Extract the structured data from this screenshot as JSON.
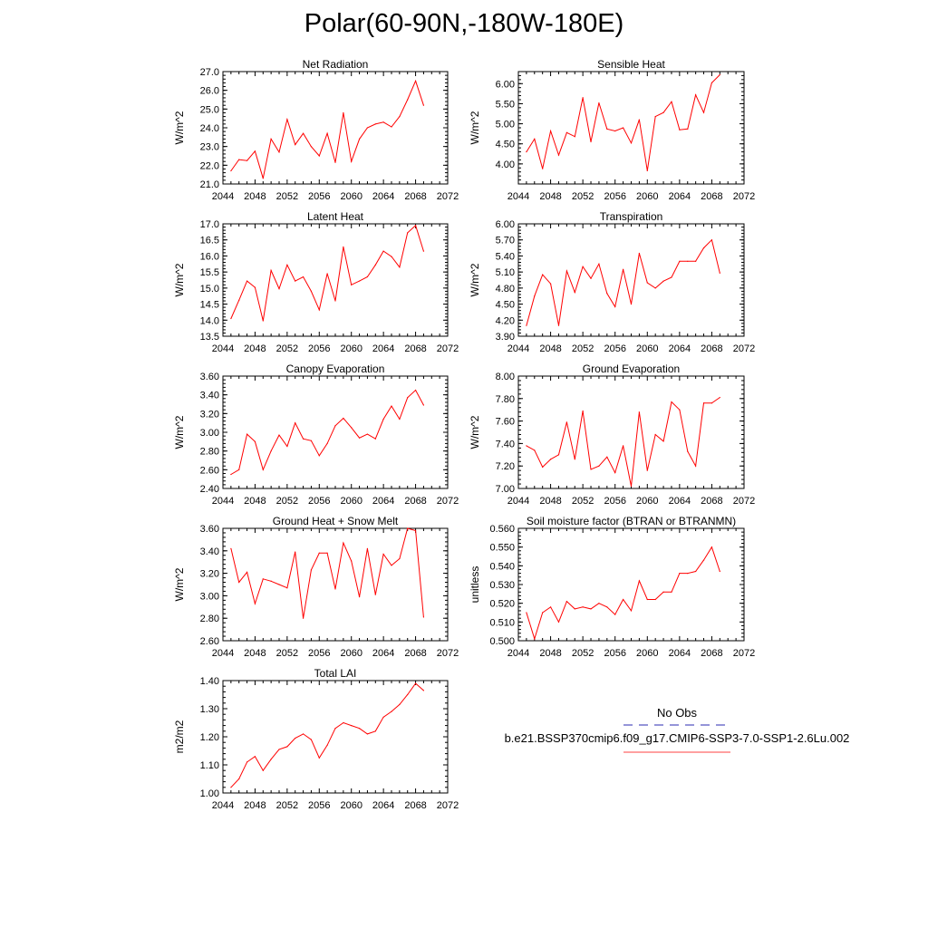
{
  "page": {
    "title": "Polar(60-90N,-180W-180E)"
  },
  "legend": {
    "entries": [
      {
        "label": "No Obs",
        "style": "dashed",
        "color": "#2b2bb0"
      },
      {
        "label": "b.e21.BSSP370cmip6.f09_g17.CMIP6-SSP3-7.0-SSP1-2.6Lu.002",
        "style": "solid",
        "color": "#ff4040"
      }
    ]
  },
  "colors": {
    "series": "#ff0000",
    "axis": "#000000"
  },
  "chart_data": [
    {
      "type": "line",
      "title": "Net Radiation",
      "xlabel": "",
      "ylabel": "W/m^2",
      "xlim": [
        2044,
        2072
      ],
      "ylim": [
        21.0,
        27.0
      ],
      "xticks": [
        "2044",
        "2048",
        "2052",
        "2056",
        "2060",
        "2064",
        "2068",
        "2072"
      ],
      "yticks": [
        "21.0",
        "22.0",
        "23.0",
        "24.0",
        "25.0",
        "26.0",
        "27.0"
      ],
      "x": [
        2045,
        2046,
        2047,
        2048,
        2049,
        2050,
        2051,
        2052,
        2053,
        2054,
        2055,
        2056,
        2057,
        2058,
        2059,
        2060,
        2061,
        2062,
        2063,
        2064,
        2065,
        2066,
        2067,
        2068,
        2069
      ],
      "series": [
        {
          "values": [
            21.7,
            22.3,
            22.25,
            22.75,
            21.3,
            23.4,
            22.7,
            24.45,
            23.1,
            23.7,
            23.0,
            22.5,
            23.7,
            22.15,
            24.8,
            22.2,
            23.4,
            24.0,
            24.2,
            24.3,
            24.05,
            24.6,
            25.5,
            26.5,
            25.2
          ]
        }
      ]
    },
    {
      "type": "line",
      "title": "Sensible Heat",
      "xlabel": "",
      "ylabel": "W/m^2",
      "xlim": [
        2044,
        2072
      ],
      "ylim": [
        3.5,
        6.3
      ],
      "xticks": [
        "2044",
        "2048",
        "2052",
        "2056",
        "2060",
        "2064",
        "2068",
        "2072"
      ],
      "yticks": [
        "4.00",
        "4.50",
        "5.00",
        "5.50",
        "6.00"
      ],
      "x": [
        2045,
        2046,
        2047,
        2048,
        2049,
        2050,
        2051,
        2052,
        2053,
        2054,
        2055,
        2056,
        2057,
        2058,
        2059,
        2060,
        2061,
        2062,
        2063,
        2064,
        2065,
        2066,
        2067,
        2068,
        2069
      ],
      "series": [
        {
          "values": [
            4.3,
            4.62,
            3.88,
            4.82,
            4.22,
            4.78,
            4.68,
            5.65,
            4.55,
            5.52,
            4.87,
            4.82,
            4.9,
            4.52,
            5.1,
            3.83,
            5.18,
            5.28,
            5.55,
            4.85,
            4.87,
            5.72,
            5.28,
            6.02,
            6.22
          ]
        }
      ]
    },
    {
      "type": "line",
      "title": "Latent Heat",
      "xlabel": "",
      "ylabel": "W/m^2",
      "xlim": [
        2044,
        2072
      ],
      "ylim": [
        13.5,
        17.0
      ],
      "xticks": [
        "2044",
        "2048",
        "2052",
        "2056",
        "2060",
        "2064",
        "2068",
        "2072"
      ],
      "yticks": [
        "13.5",
        "14.0",
        "14.5",
        "15.0",
        "15.5",
        "16.0",
        "16.5",
        "17.0"
      ],
      "x": [
        2045,
        2046,
        2047,
        2048,
        2049,
        2050,
        2051,
        2052,
        2053,
        2054,
        2055,
        2056,
        2057,
        2058,
        2059,
        2060,
        2061,
        2062,
        2063,
        2064,
        2065,
        2066,
        2067,
        2068,
        2069
      ],
      "series": [
        {
          "values": [
            14.05,
            14.62,
            15.22,
            15.02,
            13.98,
            15.55,
            14.98,
            15.72,
            15.22,
            15.35,
            14.9,
            14.32,
            15.45,
            14.6,
            16.28,
            15.1,
            15.22,
            15.35,
            15.72,
            16.15,
            15.98,
            15.65,
            16.72,
            16.95,
            16.15
          ]
        }
      ]
    },
    {
      "type": "line",
      "title": "Transpiration",
      "xlabel": "",
      "ylabel": "W/m^2",
      "xlim": [
        2044,
        2072
      ],
      "ylim": [
        3.9,
        6.0
      ],
      "xticks": [
        "2044",
        "2048",
        "2052",
        "2056",
        "2060",
        "2064",
        "2068",
        "2072"
      ],
      "yticks": [
        "3.90",
        "4.20",
        "4.50",
        "4.80",
        "5.10",
        "5.40",
        "5.70",
        "6.00"
      ],
      "x": [
        2045,
        2046,
        2047,
        2048,
        2049,
        2050,
        2051,
        2052,
        2053,
        2054,
        2055,
        2056,
        2057,
        2058,
        2059,
        2060,
        2061,
        2062,
        2063,
        2064,
        2065,
        2066,
        2067,
        2068,
        2069
      ],
      "series": [
        {
          "values": [
            4.1,
            4.65,
            5.05,
            4.88,
            4.1,
            5.12,
            4.72,
            5.2,
            4.98,
            5.25,
            4.7,
            4.45,
            5.15,
            4.5,
            5.45,
            4.9,
            4.8,
            4.93,
            5.0,
            5.3,
            5.3,
            5.3,
            5.55,
            5.7,
            5.08
          ]
        }
      ]
    },
    {
      "type": "line",
      "title": "Canopy Evaporation",
      "xlabel": "",
      "ylabel": "W/m^2",
      "xlim": [
        2044,
        2072
      ],
      "ylim": [
        2.4,
        3.6
      ],
      "xticks": [
        "2044",
        "2048",
        "2052",
        "2056",
        "2060",
        "2064",
        "2068",
        "2072"
      ],
      "yticks": [
        "2.40",
        "2.60",
        "2.80",
        "3.00",
        "3.20",
        "3.40",
        "3.60"
      ],
      "x": [
        2045,
        2046,
        2047,
        2048,
        2049,
        2050,
        2051,
        2052,
        2053,
        2054,
        2055,
        2056,
        2057,
        2058,
        2059,
        2060,
        2061,
        2062,
        2063,
        2064,
        2065,
        2066,
        2067,
        2068,
        2069
      ],
      "series": [
        {
          "values": [
            2.55,
            2.6,
            2.98,
            2.9,
            2.6,
            2.8,
            2.97,
            2.85,
            3.1,
            2.93,
            2.91,
            2.75,
            2.88,
            3.07,
            3.15,
            3.05,
            2.94,
            2.98,
            2.93,
            3.14,
            3.28,
            3.14,
            3.37,
            3.45,
            3.29
          ]
        }
      ]
    },
    {
      "type": "line",
      "title": "Ground Evaporation",
      "xlabel": "",
      "ylabel": "W/m^2",
      "xlim": [
        2044,
        2072
      ],
      "ylim": [
        7.0,
        8.0
      ],
      "xticks": [
        "2044",
        "2048",
        "2052",
        "2056",
        "2060",
        "2064",
        "2068",
        "2072"
      ],
      "yticks": [
        "7.00",
        "7.20",
        "7.40",
        "7.60",
        "7.80",
        "8.00"
      ],
      "x": [
        2045,
        2046,
        2047,
        2048,
        2049,
        2050,
        2051,
        2052,
        2053,
        2054,
        2055,
        2056,
        2057,
        2058,
        2059,
        2060,
        2061,
        2062,
        2063,
        2064,
        2065,
        2066,
        2067,
        2068,
        2069
      ],
      "series": [
        {
          "values": [
            7.38,
            7.34,
            7.19,
            7.26,
            7.3,
            7.59,
            7.26,
            7.69,
            7.17,
            7.2,
            7.28,
            7.14,
            7.38,
            7.02,
            7.68,
            7.16,
            7.48,
            7.42,
            7.77,
            7.7,
            7.33,
            7.2,
            7.76,
            7.76,
            7.81
          ]
        }
      ]
    },
    {
      "type": "line",
      "title": "Ground Heat + Snow Melt",
      "xlabel": "",
      "ylabel": "W/m^2",
      "xlim": [
        2044,
        2072
      ],
      "ylim": [
        2.6,
        3.6
      ],
      "xticks": [
        "2044",
        "2048",
        "2052",
        "2056",
        "2060",
        "2064",
        "2068",
        "2072"
      ],
      "yticks": [
        "2.60",
        "2.80",
        "3.00",
        "3.20",
        "3.40",
        "3.60"
      ],
      "x": [
        2045,
        2046,
        2047,
        2048,
        2049,
        2050,
        2051,
        2052,
        2053,
        2054,
        2055,
        2056,
        2057,
        2058,
        2059,
        2060,
        2061,
        2062,
        2063,
        2064,
        2065,
        2066,
        2067,
        2068,
        2069
      ],
      "series": [
        {
          "values": [
            3.42,
            3.12,
            3.21,
            2.93,
            3.15,
            3.13,
            3.1,
            3.07,
            3.39,
            2.8,
            3.23,
            3.38,
            3.38,
            3.06,
            3.47,
            3.31,
            2.99,
            3.42,
            3.01,
            3.37,
            3.27,
            3.33,
            3.6,
            3.58,
            2.81
          ]
        }
      ]
    },
    {
      "type": "line",
      "title": "Soil moisture factor (BTRAN or BTRANMN)",
      "xlabel": "",
      "ylabel": "unitless",
      "xlim": [
        2044,
        2072
      ],
      "ylim": [
        0.5,
        0.56
      ],
      "xticks": [
        "2044",
        "2048",
        "2052",
        "2056",
        "2060",
        "2064",
        "2068",
        "2072"
      ],
      "yticks": [
        "0.500",
        "0.510",
        "0.520",
        "0.530",
        "0.540",
        "0.550",
        "0.560"
      ],
      "x": [
        2045,
        2046,
        2047,
        2048,
        2049,
        2050,
        2051,
        2052,
        2053,
        2054,
        2055,
        2056,
        2057,
        2058,
        2059,
        2060,
        2061,
        2062,
        2063,
        2064,
        2065,
        2066,
        2067,
        2068,
        2069
      ],
      "series": [
        {
          "values": [
            0.515,
            0.501,
            0.515,
            0.518,
            0.51,
            0.521,
            0.517,
            0.518,
            0.517,
            0.52,
            0.518,
            0.514,
            0.522,
            0.516,
            0.532,
            0.522,
            0.522,
            0.526,
            0.526,
            0.536,
            0.536,
            0.537,
            0.543,
            0.55,
            0.537
          ]
        }
      ]
    },
    {
      "type": "line",
      "title": "Total LAI",
      "xlabel": "",
      "ylabel": "m2/m2",
      "xlim": [
        2044,
        2072
      ],
      "ylim": [
        1.0,
        1.4
      ],
      "xticks": [
        "2044",
        "2048",
        "2052",
        "2056",
        "2060",
        "2064",
        "2068",
        "2072"
      ],
      "yticks": [
        "1.00",
        "1.10",
        "1.20",
        "1.30",
        "1.40"
      ],
      "x": [
        2045,
        2046,
        2047,
        2048,
        2049,
        2050,
        2051,
        2052,
        2053,
        2054,
        2055,
        2056,
        2057,
        2058,
        2059,
        2060,
        2061,
        2062,
        2063,
        2064,
        2065,
        2066,
        2067,
        2068,
        2069
      ],
      "series": [
        {
          "values": [
            1.02,
            1.05,
            1.11,
            1.13,
            1.08,
            1.12,
            1.155,
            1.165,
            1.195,
            1.21,
            1.19,
            1.125,
            1.17,
            1.23,
            1.25,
            1.24,
            1.23,
            1.21,
            1.22,
            1.27,
            1.29,
            1.315,
            1.35,
            1.39,
            1.365
          ]
        }
      ]
    }
  ]
}
